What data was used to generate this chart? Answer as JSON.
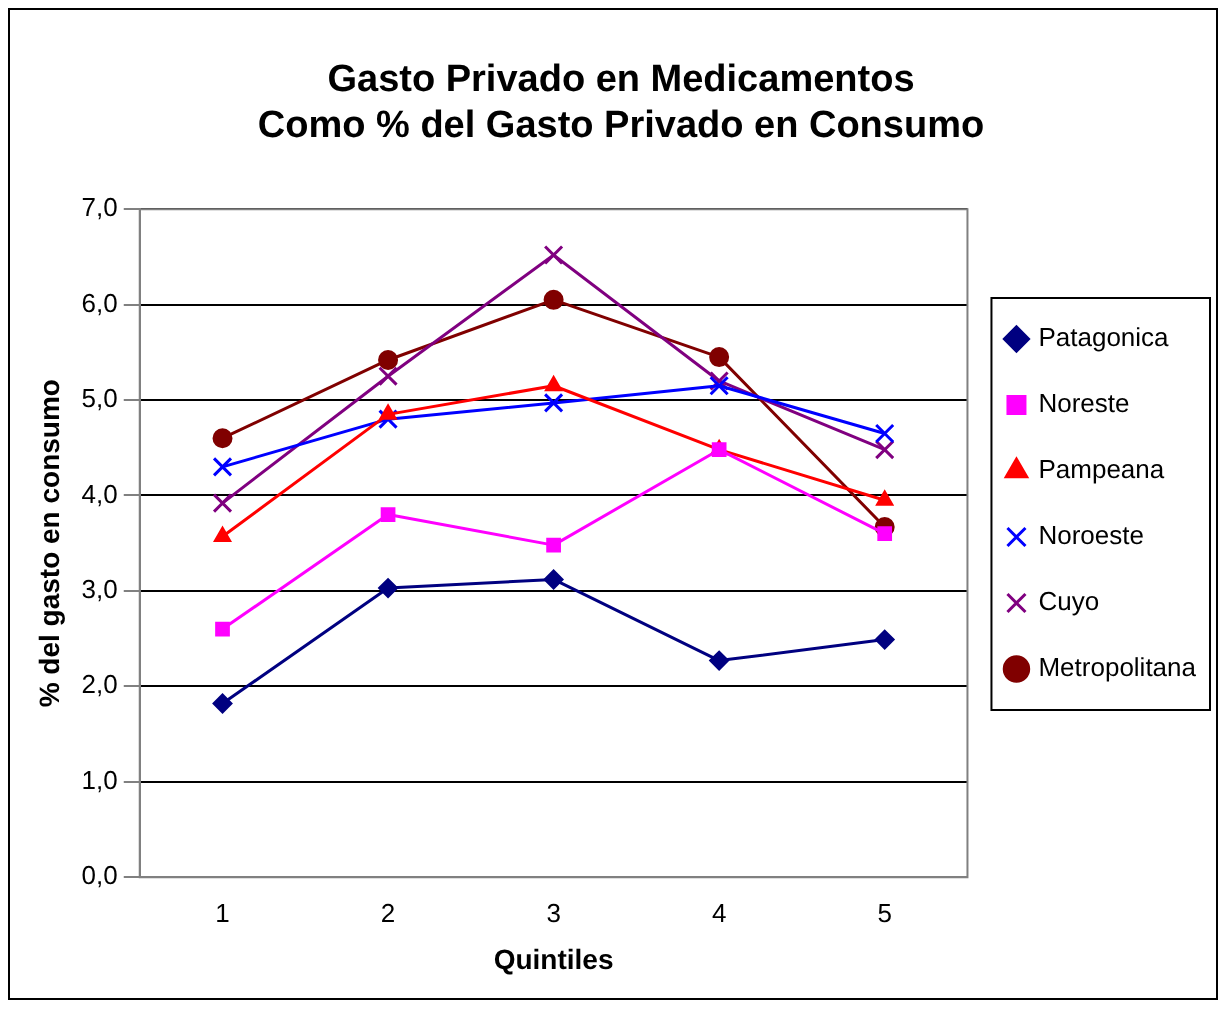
{
  "chart_data": {
    "type": "line",
    "title": [
      "Gasto Privado en Medicamentos",
      "Como % del Gasto Privado en Consumo"
    ],
    "xlabel": "Quintiles",
    "ylabel": "% del gasto en consumo",
    "categories": [
      "1",
      "2",
      "3",
      "4",
      "5"
    ],
    "ylim": [
      0,
      7
    ],
    "yticks": [
      {
        "value": 0,
        "label": "0,0"
      },
      {
        "value": 1,
        "label": "1,0"
      },
      {
        "value": 2,
        "label": "2,0"
      },
      {
        "value": 3,
        "label": "3,0"
      },
      {
        "value": 4,
        "label": "4,0"
      },
      {
        "value": 5,
        "label": "5,0"
      },
      {
        "value": 6,
        "label": "6,0"
      },
      {
        "value": 7,
        "label": "7,0"
      }
    ],
    "grid": "y",
    "legend": "right",
    "series": [
      {
        "name": "Patagonica",
        "color": "#000080",
        "marker": "diamond",
        "values": [
          1.82,
          3.03,
          3.12,
          2.27,
          2.49
        ]
      },
      {
        "name": "Noreste",
        "color": "#ff00ff",
        "marker": "square",
        "values": [
          2.6,
          3.8,
          3.48,
          4.48,
          3.6
        ]
      },
      {
        "name": "Pampeana",
        "color": "#ff0000",
        "marker": "triangle",
        "values": [
          3.57,
          4.85,
          5.15,
          4.48,
          3.95
        ]
      },
      {
        "name": "Noroeste",
        "color": "#0000ff",
        "marker": "cross",
        "values": [
          4.3,
          4.8,
          4.97,
          5.15,
          4.65
        ]
      },
      {
        "name": "Cuyo",
        "color": "#800080",
        "marker": "cross",
        "values": [
          3.92,
          5.25,
          6.52,
          5.2,
          4.48
        ]
      },
      {
        "name": "Metropolitana",
        "color": "#800000",
        "marker": "circle",
        "values": [
          4.6,
          5.42,
          6.05,
          5.45,
          3.67
        ]
      }
    ]
  }
}
